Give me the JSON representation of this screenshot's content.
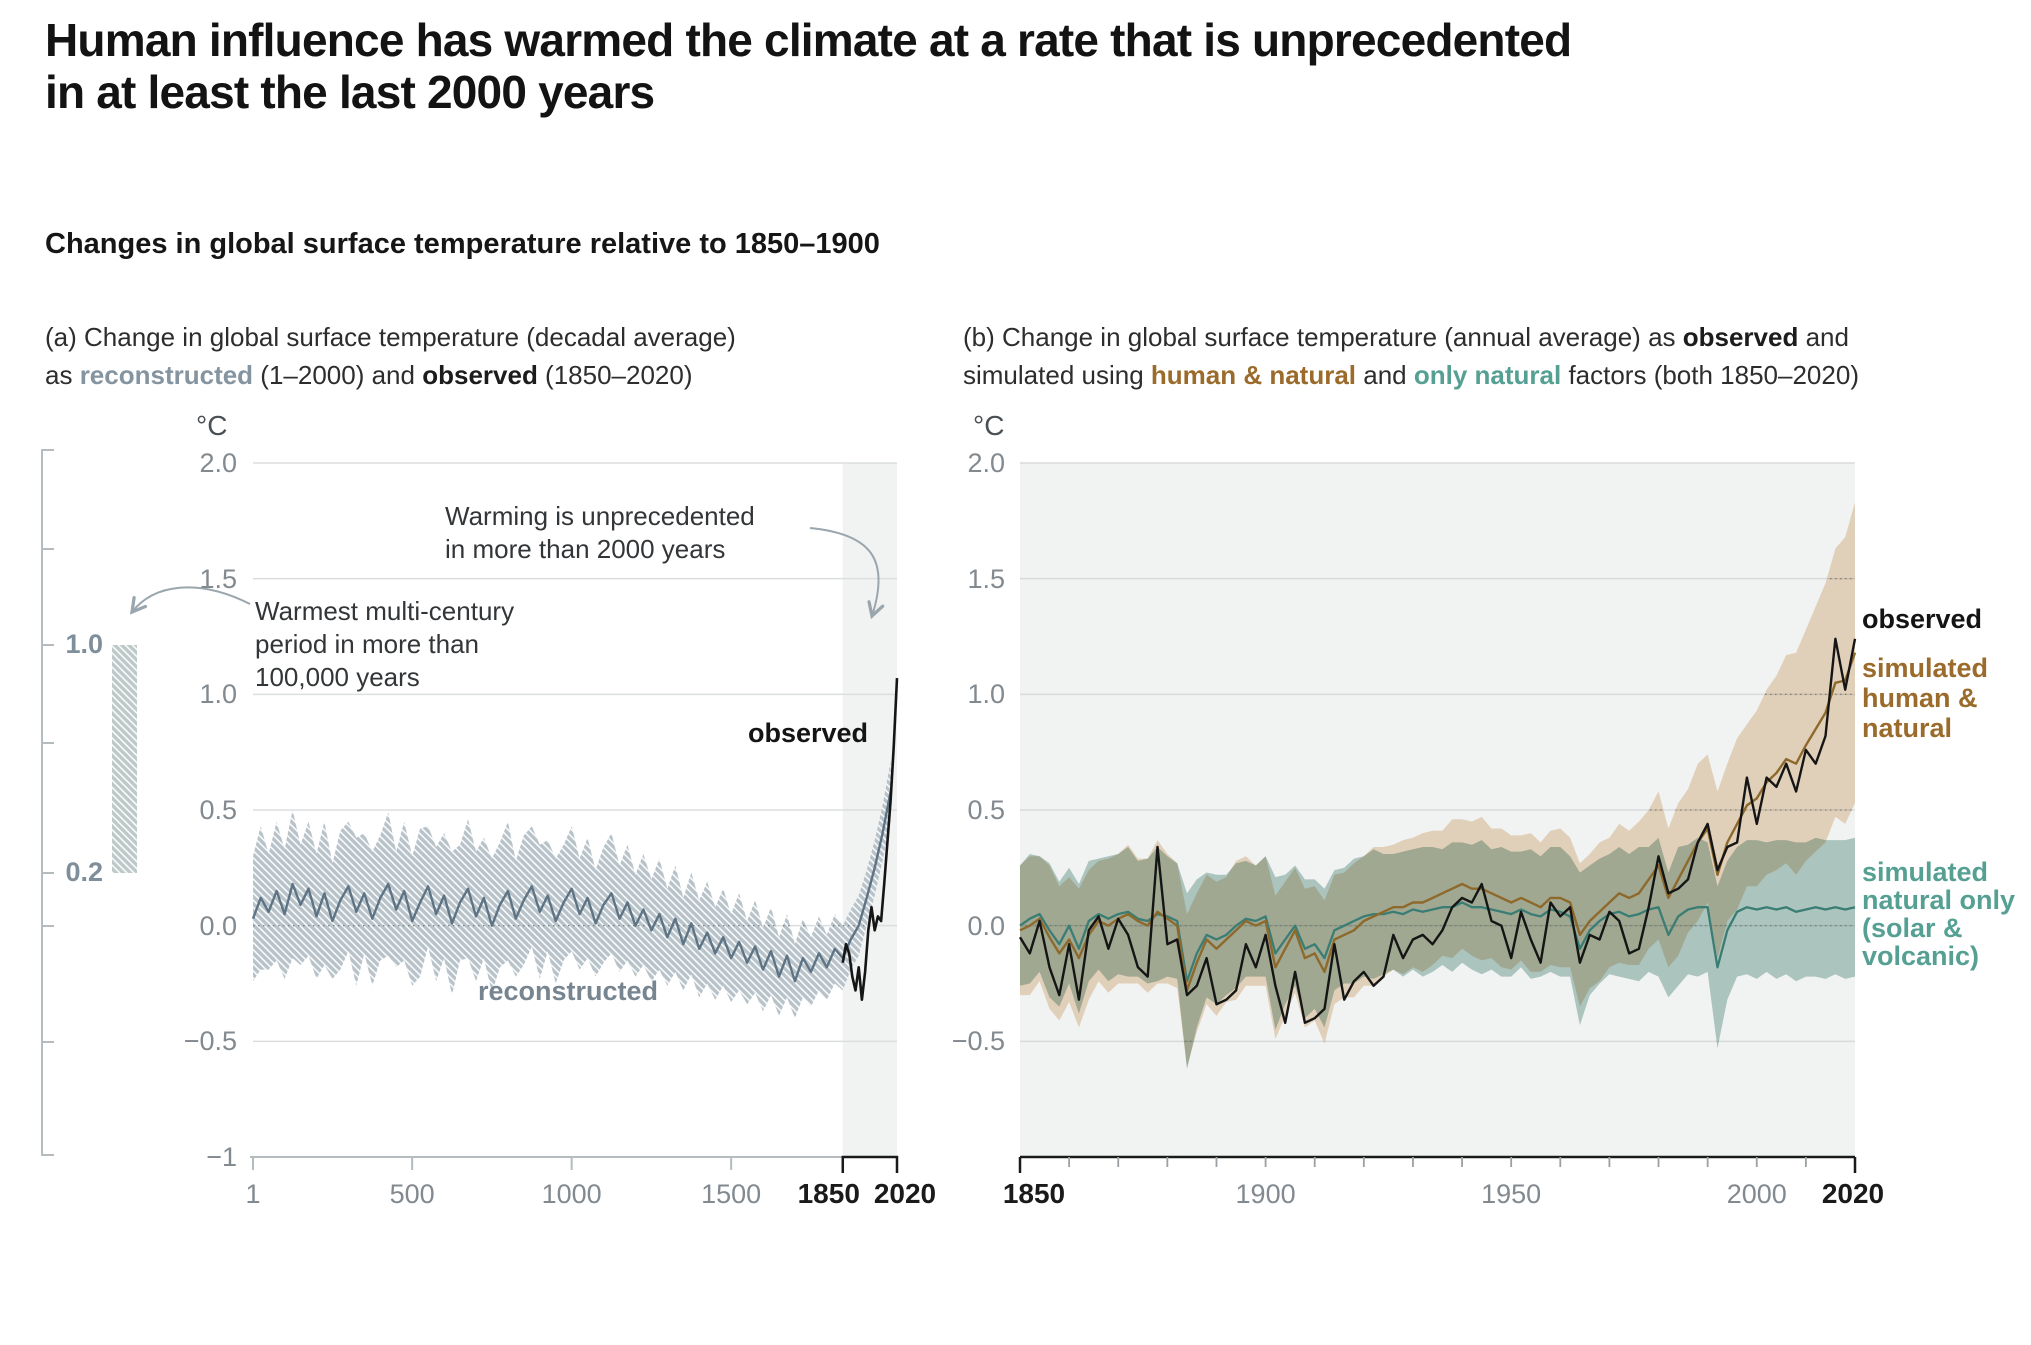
{
  "header": {
    "title_line1": "Human influence has warmed the climate at a rate that is unprecedented",
    "title_line2": "in at least the last 2000 years",
    "subtitle": "Changes in global surface temperature relative to 1850–1900"
  },
  "colors": {
    "observed_line": "#151515",
    "reconstructed_band": "#b7c2c9",
    "reconstructed_line": "#5e7484",
    "reconstructed_label": "#76858f",
    "human_natural_band": "#efdbc3",
    "human_natural_line": "#8e692c",
    "human_natural_label": "#9a6b2a",
    "natural_band": "#b6cfc8",
    "natural_line": "#3a7d74",
    "natural_label": "#55a093",
    "grid": "#dbdedf",
    "axis_gray": "#b4bcc0",
    "axis_black": "#1a1a1a",
    "tick_gray": "#82898f",
    "highlight_band": "#f1f2f2",
    "panel_b_bg": "#f1f2f2",
    "arrow": "#9aa6ad",
    "hatch_bar_fill": "#bcc9c8",
    "dotted_grid": "#6f7a7a"
  },
  "panel_a": {
    "caption": {
      "line1": "(a) Change in global surface temperature (decadal average)",
      "line2_prefix": "as ",
      "reconstructed_word": "reconstructed",
      "line2_mid": " (1–2000) and ",
      "observed_word": "observed",
      "line2_suffix": " (1850–2020)"
    },
    "unit": "°C",
    "yticks": [
      {
        "label": "2.0",
        "t": 2.0
      },
      {
        "label": "1.5",
        "t": 1.5
      },
      {
        "label": "1.0",
        "t": 1.0
      },
      {
        "label": "0.5",
        "t": 0.5
      },
      {
        "label": "0.0",
        "t": 0.0
      },
      {
        "label": "−0.5",
        "t": -0.5
      },
      {
        "label": "−1",
        "t": -1.0
      }
    ],
    "xticks": [
      {
        "label": "1",
        "year": 1,
        "bold": false
      },
      {
        "label": "500",
        "year": 500,
        "bold": false
      },
      {
        "label": "1000",
        "year": 1000,
        "bold": false
      },
      {
        "label": "1500",
        "year": 1500,
        "bold": false
      },
      {
        "label": "1850",
        "year": 1850,
        "bold": true
      },
      {
        "label": "2020",
        "year": 2020,
        "bold": true
      }
    ],
    "annotations": {
      "warming": [
        "Warming is unprecedented",
        "in more than 2000 years"
      ],
      "warmest": [
        "Warmest multi-century",
        "period in more than",
        "100,000 years"
      ]
    },
    "series_labels": {
      "observed": "observed",
      "reconstructed": "reconstructed"
    },
    "sidebar": {
      "top_label": "1.0",
      "bottom_label": "0.2"
    }
  },
  "panel_b": {
    "caption": {
      "line1_prefix": "(b) Change in global surface temperature (annual average) as ",
      "observed_word": "observed",
      "line1_suffix": " and",
      "line2_prefix": "simulated using ",
      "human_word": "human & natural",
      "line2_mid": " and ",
      "natural_word": "only natural",
      "line2_suffix": " factors (both 1850–2020)"
    },
    "unit": "°C",
    "yticks": [
      {
        "label": "2.0",
        "t": 2.0
      },
      {
        "label": "1.5",
        "t": 1.5
      },
      {
        "label": "1.0",
        "t": 1.0
      },
      {
        "label": "0.5",
        "t": 0.5
      },
      {
        "label": "0.0",
        "t": 0.0
      },
      {
        "label": "−0.5",
        "t": -0.5
      }
    ],
    "xticks": [
      {
        "label": "1850",
        "year": 1850,
        "bold": true
      },
      {
        "label": "1900",
        "year": 1900,
        "bold": false
      },
      {
        "label": "1950",
        "year": 1950,
        "bold": false
      },
      {
        "label": "2000",
        "year": 2000,
        "bold": false
      },
      {
        "label": "2020",
        "year": 2020,
        "bold": true
      }
    ],
    "labels": {
      "observed": "observed",
      "human_natural": [
        "simulated",
        "human &",
        "natural"
      ],
      "natural_only": [
        "simulated",
        "natural only",
        "(solar &",
        "volcanic)"
      ]
    }
  },
  "chart_data": [
    {
      "type": "line",
      "title": "(a) Change in global surface temperature (decadal average) as reconstructed (1–2000) and observed (1850–2020)",
      "ylabel": "°C",
      "xlim": [
        1,
        2020
      ],
      "ylim": [
        -1,
        2
      ],
      "grid": true,
      "highlight_x_range": [
        1850,
        2020
      ],
      "sidebar_bar_range_degC": [
        0.2,
        1.0
      ],
      "years": [
        1,
        25,
        50,
        75,
        100,
        125,
        150,
        175,
        200,
        225,
        250,
        275,
        300,
        325,
        350,
        375,
        400,
        425,
        450,
        475,
        500,
        525,
        550,
        575,
        600,
        625,
        650,
        675,
        700,
        725,
        750,
        775,
        800,
        825,
        850,
        875,
        900,
        925,
        950,
        975,
        1000,
        1025,
        1050,
        1075,
        1100,
        1125,
        1150,
        1175,
        1200,
        1225,
        1250,
        1275,
        1300,
        1325,
        1350,
        1375,
        1400,
        1425,
        1450,
        1475,
        1500,
        1525,
        1550,
        1575,
        1600,
        1625,
        1650,
        1675,
        1700,
        1725,
        1750,
        1775,
        1800,
        1825,
        1850,
        1875,
        1900,
        1925,
        1950,
        1975,
        2000
      ],
      "reconstructed_median": [
        0.03,
        0.12,
        0.06,
        0.15,
        0.05,
        0.18,
        0.09,
        0.16,
        0.04,
        0.14,
        0.02,
        0.11,
        0.17,
        0.06,
        0.14,
        0.03,
        0.12,
        0.18,
        0.07,
        0.15,
        0.02,
        0.1,
        0.17,
        0.05,
        0.13,
        0.01,
        0.1,
        0.16,
        0.04,
        0.12,
        0.0,
        0.09,
        0.15,
        0.03,
        0.11,
        0.17,
        0.06,
        0.13,
        0.02,
        0.1,
        0.16,
        0.05,
        0.12,
        0.01,
        0.09,
        0.14,
        0.03,
        0.1,
        0.0,
        0.07,
        -0.02,
        0.05,
        -0.05,
        0.03,
        -0.08,
        0.01,
        -0.1,
        -0.03,
        -0.12,
        -0.05,
        -0.14,
        -0.07,
        -0.16,
        -0.09,
        -0.19,
        -0.11,
        -0.22,
        -0.13,
        -0.24,
        -0.14,
        -0.2,
        -0.12,
        -0.18,
        -0.1,
        -0.14,
        -0.06,
        0.0,
        0.12,
        0.25,
        0.4,
        0.58
      ],
      "reconstructed_halfwidth": [
        0.27,
        0.31,
        0.25,
        0.3,
        0.28,
        0.32,
        0.26,
        0.29,
        0.27,
        0.31,
        0.25,
        0.3,
        0.28,
        0.32,
        0.26,
        0.29,
        0.27,
        0.31,
        0.25,
        0.3,
        0.28,
        0.32,
        0.26,
        0.29,
        0.27,
        0.31,
        0.25,
        0.3,
        0.28,
        0.26,
        0.29,
        0.27,
        0.3,
        0.25,
        0.28,
        0.26,
        0.29,
        0.24,
        0.27,
        0.25,
        0.27,
        0.24,
        0.26,
        0.23,
        0.25,
        0.26,
        0.23,
        0.25,
        0.22,
        0.24,
        0.22,
        0.24,
        0.21,
        0.23,
        0.2,
        0.22,
        0.21,
        0.22,
        0.2,
        0.21,
        0.19,
        0.21,
        0.18,
        0.2,
        0.18,
        0.19,
        0.17,
        0.18,
        0.16,
        0.17,
        0.15,
        0.16,
        0.14,
        0.15,
        0.14,
        0.13,
        0.13,
        0.12,
        0.12,
        0.12,
        0.13
      ],
      "observed_years": [
        1850,
        1860,
        1870,
        1880,
        1890,
        1900,
        1910,
        1920,
        1930,
        1940,
        1950,
        1960,
        1970,
        1980,
        1990,
        2000,
        2010,
        2020
      ],
      "observed": [
        -0.16,
        -0.08,
        -0.12,
        -0.22,
        -0.28,
        -0.18,
        -0.32,
        -0.2,
        -0.02,
        0.08,
        -0.02,
        0.04,
        0.02,
        0.18,
        0.36,
        0.54,
        0.78,
        1.07
      ]
    },
    {
      "type": "line",
      "title": "(b) Change in global surface temperature (annual average) as observed and simulated using human & natural and only natural factors (both 1850–2020)",
      "ylabel": "°C",
      "xlim": [
        1850,
        2020
      ],
      "ylim": [
        -1,
        2
      ],
      "grid": true,
      "legend_position": "right",
      "years": [
        1850,
        1852,
        1854,
        1856,
        1858,
        1860,
        1862,
        1864,
        1866,
        1868,
        1870,
        1872,
        1874,
        1876,
        1878,
        1880,
        1882,
        1884,
        1886,
        1888,
        1890,
        1892,
        1894,
        1896,
        1898,
        1900,
        1902,
        1904,
        1906,
        1908,
        1910,
        1912,
        1914,
        1916,
        1918,
        1920,
        1922,
        1924,
        1926,
        1928,
        1930,
        1932,
        1934,
        1936,
        1938,
        1940,
        1942,
        1944,
        1946,
        1948,
        1950,
        1952,
        1954,
        1956,
        1958,
        1960,
        1962,
        1964,
        1966,
        1968,
        1970,
        1972,
        1974,
        1976,
        1978,
        1980,
        1982,
        1984,
        1986,
        1988,
        1990,
        1992,
        1994,
        1996,
        1998,
        2000,
        2002,
        2004,
        2006,
        2008,
        2010,
        2012,
        2014,
        2016,
        2018,
        2020
      ],
      "observed": [
        -0.05,
        -0.12,
        0.02,
        -0.18,
        -0.3,
        -0.08,
        -0.32,
        -0.02,
        0.04,
        -0.1,
        0.03,
        -0.04,
        -0.18,
        -0.22,
        0.34,
        -0.08,
        -0.06,
        -0.3,
        -0.26,
        -0.14,
        -0.34,
        -0.32,
        -0.28,
        -0.08,
        -0.18,
        -0.04,
        -0.26,
        -0.42,
        -0.2,
        -0.42,
        -0.4,
        -0.36,
        -0.08,
        -0.32,
        -0.24,
        -0.2,
        -0.26,
        -0.22,
        -0.04,
        -0.14,
        -0.06,
        -0.04,
        -0.08,
        -0.02,
        0.08,
        0.12,
        0.1,
        0.18,
        0.02,
        0.0,
        -0.14,
        0.06,
        -0.06,
        -0.16,
        0.1,
        0.04,
        0.08,
        -0.16,
        -0.04,
        -0.06,
        0.06,
        0.02,
        -0.12,
        -0.1,
        0.08,
        0.3,
        0.14,
        0.16,
        0.2,
        0.36,
        0.44,
        0.24,
        0.34,
        0.36,
        0.64,
        0.44,
        0.64,
        0.6,
        0.7,
        0.58,
        0.76,
        0.7,
        0.82,
        1.24,
        1.02,
        1.24
      ],
      "human_natural": [
        -0.02,
        0.0,
        0.03,
        -0.05,
        -0.12,
        -0.06,
        -0.14,
        -0.04,
        0.02,
        0.0,
        0.03,
        0.05,
        0.02,
        0.0,
        0.06,
        0.03,
        0.0,
        -0.28,
        -0.16,
        -0.06,
        -0.1,
        -0.06,
        -0.02,
        0.02,
        0.0,
        0.02,
        -0.18,
        -0.1,
        -0.02,
        -0.14,
        -0.12,
        -0.2,
        -0.06,
        -0.04,
        -0.02,
        0.02,
        0.04,
        0.06,
        0.08,
        0.08,
        0.1,
        0.1,
        0.12,
        0.14,
        0.16,
        0.18,
        0.16,
        0.16,
        0.14,
        0.12,
        0.1,
        0.12,
        0.1,
        0.08,
        0.12,
        0.12,
        0.1,
        -0.04,
        0.02,
        0.06,
        0.1,
        0.14,
        0.12,
        0.14,
        0.2,
        0.26,
        0.12,
        0.2,
        0.28,
        0.36,
        0.42,
        0.22,
        0.36,
        0.44,
        0.52,
        0.55,
        0.62,
        0.66,
        0.72,
        0.7,
        0.78,
        0.85,
        0.92,
        1.05,
        1.06,
        1.18
      ],
      "human_natural_halfwidth": [
        0.28,
        0.3,
        0.27,
        0.31,
        0.29,
        0.27,
        0.3,
        0.28,
        0.26,
        0.29,
        0.28,
        0.3,
        0.27,
        0.29,
        0.31,
        0.28,
        0.27,
        0.33,
        0.3,
        0.28,
        0.29,
        0.27,
        0.3,
        0.28,
        0.26,
        0.28,
        0.31,
        0.29,
        0.27,
        0.3,
        0.29,
        0.31,
        0.28,
        0.27,
        0.29,
        0.28,
        0.3,
        0.28,
        0.27,
        0.29,
        0.28,
        0.3,
        0.29,
        0.27,
        0.3,
        0.28,
        0.29,
        0.31,
        0.28,
        0.3,
        0.29,
        0.27,
        0.3,
        0.28,
        0.29,
        0.3,
        0.28,
        0.31,
        0.29,
        0.3,
        0.28,
        0.3,
        0.29,
        0.31,
        0.3,
        0.32,
        0.3,
        0.33,
        0.31,
        0.34,
        0.32,
        0.36,
        0.34,
        0.37,
        0.35,
        0.38,
        0.4,
        0.42,
        0.45,
        0.48,
        0.5,
        0.53,
        0.56,
        0.58,
        0.62,
        0.65
      ],
      "natural_only": [
        0.0,
        0.03,
        0.05,
        -0.02,
        -0.08,
        0.0,
        -0.1,
        0.02,
        0.05,
        0.03,
        0.05,
        0.06,
        0.03,
        0.02,
        0.05,
        0.04,
        0.02,
        -0.24,
        -0.12,
        -0.04,
        -0.06,
        -0.04,
        0.0,
        0.03,
        0.02,
        0.04,
        -0.12,
        -0.06,
        0.0,
        -0.1,
        -0.08,
        -0.14,
        -0.02,
        0.0,
        0.02,
        0.04,
        0.05,
        0.05,
        0.06,
        0.05,
        0.07,
        0.06,
        0.07,
        0.08,
        0.08,
        0.1,
        0.08,
        0.08,
        0.07,
        0.06,
        0.05,
        0.07,
        0.05,
        0.04,
        0.07,
        0.06,
        0.04,
        -0.1,
        -0.02,
        0.02,
        0.05,
        0.06,
        0.04,
        0.05,
        0.07,
        0.08,
        -0.04,
        0.04,
        0.07,
        0.08,
        0.08,
        -0.18,
        -0.02,
        0.06,
        0.08,
        0.07,
        0.08,
        0.07,
        0.08,
        0.06,
        0.07,
        0.08,
        0.07,
        0.08,
        0.07,
        0.08
      ],
      "natural_only_halfwidth": [
        0.26,
        0.28,
        0.25,
        0.29,
        0.27,
        0.25,
        0.28,
        0.26,
        0.24,
        0.27,
        0.26,
        0.28,
        0.25,
        0.27,
        0.29,
        0.26,
        0.25,
        0.38,
        0.32,
        0.27,
        0.28,
        0.26,
        0.27,
        0.25,
        0.24,
        0.26,
        0.33,
        0.28,
        0.26,
        0.3,
        0.28,
        0.3,
        0.26,
        0.25,
        0.27,
        0.26,
        0.28,
        0.26,
        0.25,
        0.27,
        0.26,
        0.28,
        0.27,
        0.25,
        0.28,
        0.26,
        0.27,
        0.29,
        0.26,
        0.28,
        0.27,
        0.25,
        0.28,
        0.26,
        0.27,
        0.28,
        0.26,
        0.33,
        0.28,
        0.27,
        0.26,
        0.28,
        0.27,
        0.29,
        0.27,
        0.3,
        0.27,
        0.3,
        0.28,
        0.3,
        0.28,
        0.35,
        0.3,
        0.28,
        0.29,
        0.3,
        0.28,
        0.3,
        0.29,
        0.3,
        0.29,
        0.3,
        0.3,
        0.29,
        0.3,
        0.3
      ]
    }
  ]
}
